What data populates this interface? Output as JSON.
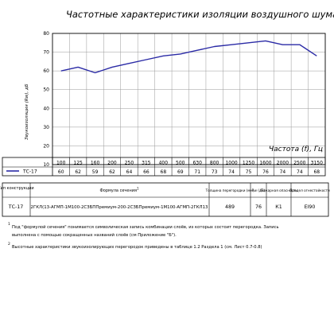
{
  "chart_data": {
    "type": "line",
    "title": "Частотные характеристики изоляции воздушного шума, Rw(f)",
    "xlabel": "Частота (f), Гц",
    "ylabel": "Звукоизоляция (Rw), дБ",
    "ylim": [
      10,
      80
    ],
    "y_ticks": [
      "10",
      "20",
      "30",
      "40",
      "50",
      "60",
      "70",
      "80"
    ],
    "grid": true,
    "categories": [
      "100",
      "125",
      "160",
      "200",
      "250",
      "315",
      "400",
      "500",
      "630",
      "800",
      "1000",
      "1250",
      "1600",
      "2000",
      "2500",
      "3150"
    ],
    "series": [
      {
        "name": "ТС-17",
        "color": "#2b2ba6",
        "values": [
          60,
          62,
          59,
          62,
          64,
          66,
          68,
          69,
          71,
          73,
          74,
          75,
          76,
          74,
          74,
          68
        ],
        "value_labels": [
          "60",
          "62",
          "59",
          "62",
          "64",
          "66",
          "68",
          "69",
          "71",
          "73",
          "74",
          "75",
          "76",
          "74",
          "74",
          "68"
        ]
      }
    ]
  },
  "spec_table": {
    "headers": {
      "type": "Тип конструкции",
      "formula": "Формула сечения",
      "formula_sup": "1",
      "thickness": "Толщина перегородки (мм)",
      "rw": "Rw (дБ)",
      "fire": "Пожарная опасность",
      "limit": "Предел огнестойкости"
    },
    "row": {
      "type": "ТС-17",
      "formula": "2ГКЛ(13-АГМП-1М100-2СЗБППремиум-200-2СЗБПремиум-1М100-АГМП-2ГКЛ13",
      "thickness": "489",
      "rw": "76",
      "fire": "К1",
      "limit": "EI90"
    }
  },
  "footnotes": [
    {
      "num": "1",
      "lines": [
        "Под \"формулой сечения\" понимается символическая запись комбинации слоёв, из которых состоит перегородка. Запись",
        "выполнена с помощью сокращенных названий слоёв (см Приложение \"Б\")."
      ]
    },
    {
      "num": "2",
      "lines": [
        "Высотные характеристики звукоизолирующих перегородок приведены в таблице 1.2 Раздела 1 (см. Лист 0.7-0.8)"
      ]
    }
  ]
}
